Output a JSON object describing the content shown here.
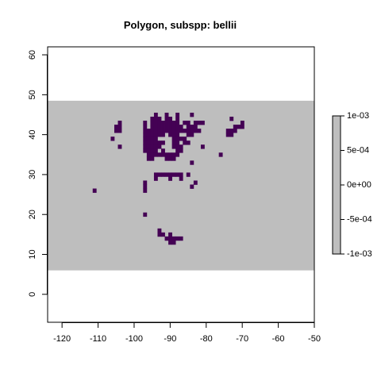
{
  "chart_data": {
    "type": "heatmap",
    "title": "Polygon, subspp: bellii",
    "xlabel": "",
    "ylabel": "",
    "xlim": [
      -124,
      -50
    ],
    "ylim": [
      -7,
      62
    ],
    "x_ticks": [
      -120,
      -110,
      -100,
      -90,
      -80,
      -70,
      -60,
      -50
    ],
    "y_ticks": [
      0,
      10,
      20,
      30,
      40,
      50,
      60
    ],
    "extent": {
      "xmin": -124,
      "xmax": -50,
      "ymin": 6,
      "ymax": 48.5
    },
    "background_fill": "#bebebe",
    "cell_size": 1,
    "cell_color": "#440154",
    "cells": [
      [
        -94,
        45
      ],
      [
        -91,
        45
      ],
      [
        -88,
        45
      ],
      [
        -84,
        45
      ],
      [
        -95,
        44
      ],
      [
        -94,
        44
      ],
      [
        -93,
        44
      ],
      [
        -91,
        44
      ],
      [
        -90,
        44
      ],
      [
        -88,
        44
      ],
      [
        -73,
        44
      ],
      [
        -104,
        43
      ],
      [
        -97,
        43
      ],
      [
        -95,
        43
      ],
      [
        -94,
        43
      ],
      [
        -93,
        43
      ],
      [
        -92,
        43
      ],
      [
        -91,
        43
      ],
      [
        -90,
        43
      ],
      [
        -89,
        43
      ],
      [
        -88,
        43
      ],
      [
        -86,
        43
      ],
      [
        -85,
        43
      ],
      [
        -83,
        43
      ],
      [
        -82,
        43
      ],
      [
        -81,
        43
      ],
      [
        -70,
        43
      ],
      [
        -105,
        42
      ],
      [
        -104,
        42
      ],
      [
        -97,
        42
      ],
      [
        -95,
        42
      ],
      [
        -94,
        42
      ],
      [
        -93,
        42
      ],
      [
        -92,
        42
      ],
      [
        -91,
        42
      ],
      [
        -90,
        42
      ],
      [
        -89,
        42
      ],
      [
        -88,
        42
      ],
      [
        -87,
        42
      ],
      [
        -85,
        42
      ],
      [
        -84,
        42
      ],
      [
        -83,
        42
      ],
      [
        -72,
        42
      ],
      [
        -71,
        42
      ],
      [
        -70,
        42
      ],
      [
        -105,
        41
      ],
      [
        -104,
        41
      ],
      [
        -97,
        41
      ],
      [
        -96,
        41
      ],
      [
        -95,
        41
      ],
      [
        -94,
        41
      ],
      [
        -93,
        41
      ],
      [
        -92,
        41
      ],
      [
        -91,
        41
      ],
      [
        -90,
        41
      ],
      [
        -89,
        41
      ],
      [
        -88,
        41
      ],
      [
        -87,
        41
      ],
      [
        -86,
        41
      ],
      [
        -85,
        41
      ],
      [
        -84,
        41
      ],
      [
        -83,
        41
      ],
      [
        -82,
        41
      ],
      [
        -74,
        41
      ],
      [
        -73,
        41
      ],
      [
        -72,
        41
      ],
      [
        -97,
        40
      ],
      [
        -96,
        40
      ],
      [
        -95,
        40
      ],
      [
        -94,
        40
      ],
      [
        -93,
        40
      ],
      [
        -92,
        40
      ],
      [
        -90,
        40
      ],
      [
        -89,
        40
      ],
      [
        -88,
        40
      ],
      [
        -85,
        40
      ],
      [
        -84,
        40
      ],
      [
        -74,
        40
      ],
      [
        -73,
        40
      ],
      [
        -106,
        39
      ],
      [
        -97,
        39
      ],
      [
        -96,
        39
      ],
      [
        -95,
        39
      ],
      [
        -94,
        39
      ],
      [
        -89,
        39
      ],
      [
        -88,
        39
      ],
      [
        -87,
        39
      ],
      [
        -86,
        39
      ],
      [
        -97,
        38
      ],
      [
        -96,
        38
      ],
      [
        -95,
        38
      ],
      [
        -94,
        38
      ],
      [
        -93,
        38
      ],
      [
        -92,
        38
      ],
      [
        -89,
        38
      ],
      [
        -88,
        38
      ],
      [
        -86,
        38
      ],
      [
        -85,
        38
      ],
      [
        -104,
        37
      ],
      [
        -97,
        37
      ],
      [
        -96,
        37
      ],
      [
        -95,
        37
      ],
      [
        -94,
        37
      ],
      [
        -93,
        37
      ],
      [
        -89,
        37
      ],
      [
        -88,
        37
      ],
      [
        -87,
        37
      ],
      [
        -81,
        37
      ],
      [
        -97,
        36
      ],
      [
        -96,
        36
      ],
      [
        -95,
        36
      ],
      [
        -94,
        36
      ],
      [
        -92,
        36
      ],
      [
        -88,
        36
      ],
      [
        -87,
        36
      ],
      [
        -96,
        35
      ],
      [
        -95,
        35
      ],
      [
        -94,
        35
      ],
      [
        -93,
        35
      ],
      [
        -92,
        35
      ],
      [
        -91,
        35
      ],
      [
        -90,
        35
      ],
      [
        -89,
        35
      ],
      [
        -88,
        35
      ],
      [
        -76,
        35
      ],
      [
        -96,
        34
      ],
      [
        -95,
        34
      ],
      [
        -91,
        34
      ],
      [
        -90,
        34
      ],
      [
        -89,
        34
      ],
      [
        -84,
        33
      ],
      [
        -94,
        30
      ],
      [
        -93,
        30
      ],
      [
        -92,
        30
      ],
      [
        -91,
        30
      ],
      [
        -90,
        30
      ],
      [
        -89,
        30
      ],
      [
        -88,
        30
      ],
      [
        -87,
        30
      ],
      [
        -85,
        30
      ],
      [
        -94,
        29
      ],
      [
        -90,
        29
      ],
      [
        -87,
        29
      ],
      [
        -97,
        28
      ],
      [
        -83,
        28
      ],
      [
        -97,
        27
      ],
      [
        -84,
        27
      ],
      [
        -97,
        26
      ],
      [
        -111,
        26
      ],
      [
        -97,
        20
      ],
      [
        -93,
        16
      ],
      [
        -93,
        15
      ],
      [
        -92,
        15
      ],
      [
        -90,
        15
      ],
      [
        -91,
        14
      ],
      [
        -90,
        14
      ],
      [
        -89,
        14
      ],
      [
        -88,
        14
      ],
      [
        -87,
        14
      ],
      [
        -90,
        13
      ],
      [
        -89,
        13
      ]
    ],
    "legend": {
      "position": "right",
      "range": [
        -0.001,
        0.001
      ],
      "fill": "#bebebe",
      "tick_labels": [
        "1e-03",
        "5e-04",
        "0e+00",
        "-5e-04",
        "-1e-03"
      ],
      "tick_values": [
        0.001,
        0.0005,
        0,
        -0.0005,
        -0.001
      ]
    }
  }
}
